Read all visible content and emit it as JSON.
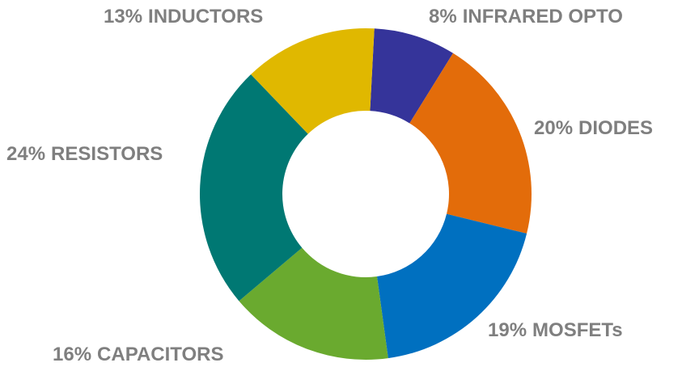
{
  "chart_data": {
    "type": "donut",
    "categories": [
      "INFRARED OPTO",
      "DIODES",
      "MOSFETs",
      "CAPACITORS",
      "RESISTORS",
      "INDUCTORS"
    ],
    "values": [
      8,
      20,
      19,
      16,
      24,
      13
    ],
    "value_labels": [
      "8%",
      "20%",
      "19%",
      "16%",
      "24%",
      "13%"
    ],
    "colors": [
      "#35349a",
      "#e36c0a",
      "#0070c0",
      "#6aaa2f",
      "#007873",
      "#e0b800"
    ]
  }
}
